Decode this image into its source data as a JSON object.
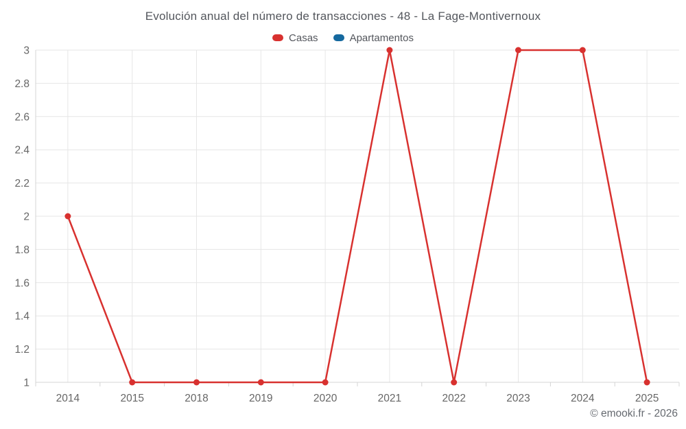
{
  "title": "Evolución anual del número de transacciones - 48 - La Fage-Montivernoux",
  "legend": {
    "items": [
      {
        "label": "Casas",
        "color": "#d8312f"
      },
      {
        "label": "Apartamentos",
        "color": "#15699f"
      }
    ]
  },
  "credits": "© emooki.fr - 2026",
  "colors": {
    "grid": "#e6e6e6",
    "axis_line": "#d4d4d4",
    "tick": "#d4d4d4",
    "axis_label": "#666666",
    "title_text": "#53565c",
    "background": "#ffffff"
  },
  "chart_data": {
    "type": "line",
    "title": "Evolución anual del número de transacciones - 48 - La Fage-Montivernoux",
    "categories": [
      "2014",
      "2015",
      "2018",
      "2019",
      "2020",
      "2021",
      "2022",
      "2023",
      "2024",
      "2025"
    ],
    "series": [
      {
        "name": "Casas",
        "color": "#d8312f",
        "values": [
          2,
          1,
          1,
          1,
          1,
          3,
          1,
          3,
          3,
          1
        ]
      },
      {
        "name": "Apartamentos",
        "color": "#15699f",
        "values": []
      }
    ],
    "xlabel": "",
    "ylabel": "",
    "ylim": [
      1,
      3
    ],
    "ytick_step": 0.2,
    "grid": true,
    "legend_position": "top",
    "marker_radius": 4.5,
    "line_width": 2.5
  }
}
